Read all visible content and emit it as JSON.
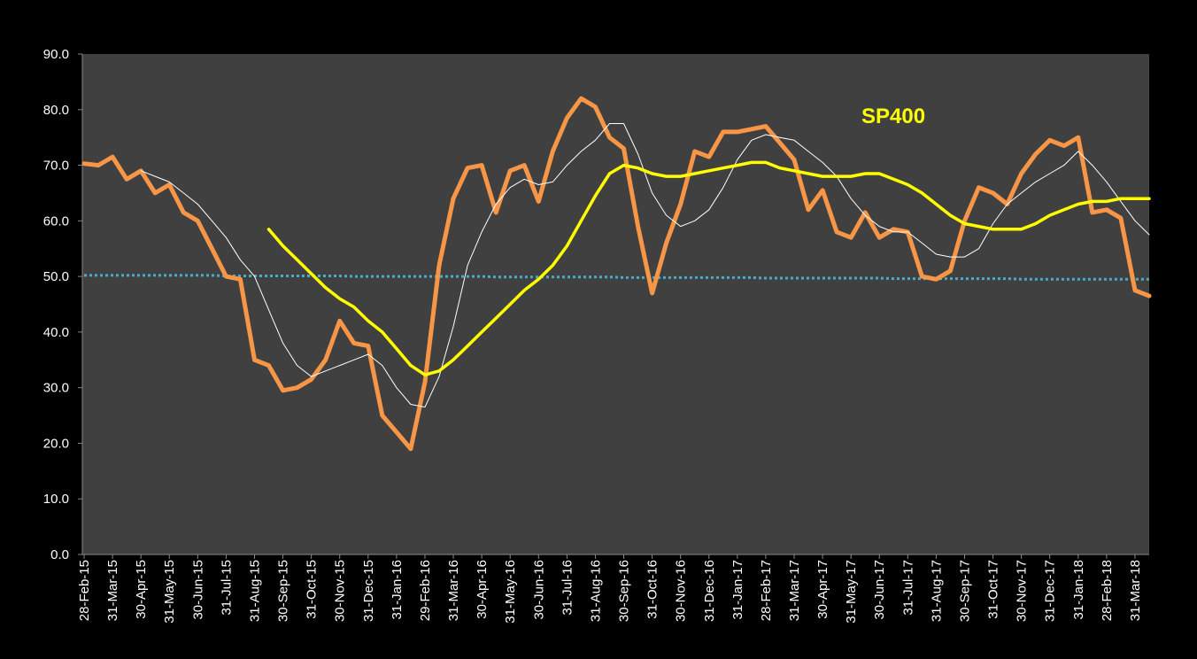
{
  "chart_data": {
    "type": "line",
    "annotations": [
      {
        "text": "SP400",
        "color": "#ffff00"
      }
    ],
    "categories": [
      "28-Feb-15",
      null,
      "31-Mar-15",
      null,
      "30-Apr-15",
      null,
      "31-May-15",
      null,
      "30-Jun-15",
      null,
      "31-Jul-15",
      null,
      "31-Aug-15",
      null,
      "30-Sep-15",
      null,
      "31-Oct-15",
      null,
      "30-Nov-15",
      null,
      "31-Dec-15",
      null,
      "31-Jan-16",
      null,
      "29-Feb-16",
      null,
      "31-Mar-16",
      null,
      "30-Apr-16",
      null,
      "31-May-16",
      null,
      "30-Jun-16",
      null,
      "31-Jul-16",
      null,
      "31-Aug-16",
      null,
      "30-Sep-16",
      null,
      "31-Oct-16",
      null,
      "30-Nov-16",
      null,
      "31-Dec-16",
      null,
      "31-Jan-17",
      null,
      "28-Feb-17",
      null,
      "31-Mar-17",
      null,
      "30-Apr-17",
      null,
      "31-May-17",
      null,
      "30-Jun-17",
      null,
      "31-Jul-17",
      null,
      "31-Aug-17",
      null,
      "30-Sep-17",
      null,
      "31-Oct-17",
      null,
      "30-Nov-17",
      null,
      "31-Dec-17",
      null,
      "31-Jan-18",
      null,
      "28-Feb-18",
      null,
      "31-Mar-18",
      null
    ],
    "series": [
      {
        "color": "#4bacc6",
        "width": 3,
        "dash": true,
        "values": [
          50.2,
          50.2,
          50.2,
          50.2,
          50.2,
          50.2,
          50.2,
          50.2,
          50.2,
          50.2,
          50.1,
          50.1,
          50.1,
          50.1,
          50.1,
          50.1,
          50.1,
          50.1,
          50.1,
          50.0,
          50.0,
          50.0,
          50.0,
          50.0,
          50.0,
          50.0,
          50.0,
          50.0,
          50.0,
          49.9,
          49.9,
          49.9,
          49.9,
          49.9,
          49.9,
          49.9,
          49.9,
          49.9,
          49.8,
          49.8,
          49.8,
          49.8,
          49.8,
          49.8,
          49.8,
          49.8,
          49.8,
          49.8,
          49.7,
          49.7,
          49.7,
          49.7,
          49.7,
          49.7,
          49.7,
          49.7,
          49.7,
          49.6,
          49.6,
          49.6,
          49.6,
          49.6,
          49.6,
          49.6,
          49.6,
          49.6,
          49.5,
          49.5,
          49.5,
          49.5,
          49.5,
          49.5,
          49.5,
          49.5,
          49.5,
          49.5
        ]
      },
      {
        "color": "#f79646",
        "width": 5,
        "values": [
          70.3,
          70,
          71.5,
          67.5,
          69,
          65,
          66.5,
          61.5,
          60,
          55,
          50,
          49.5,
          35,
          34,
          29.5,
          30,
          31.5,
          35,
          42,
          38,
          37.5,
          25,
          22,
          19,
          31,
          52,
          64,
          69.5,
          70,
          61.5,
          69,
          70,
          63.5,
          72.5,
          78.5,
          82,
          80.5,
          75,
          73,
          59,
          47,
          56,
          63,
          72.5,
          71.5,
          76,
          76,
          76.5,
          77,
          74,
          71,
          62,
          65.5,
          58,
          57,
          61.5,
          57,
          58.5,
          58,
          50,
          49.5,
          51,
          60,
          66,
          65,
          63,
          68.5,
          72,
          74.5,
          73.5,
          75,
          61.5,
          62,
          60.5,
          47.5,
          46.5
        ]
      },
      {
        "color": "#ffffff",
        "width": 1,
        "values": [
          null,
          null,
          null,
          null,
          69,
          68,
          67,
          65,
          63,
          60,
          57,
          53,
          50,
          44,
          38,
          34,
          32,
          33,
          34,
          35,
          36,
          34,
          30,
          27,
          26.5,
          32,
          41,
          52,
          58,
          63,
          66,
          67.5,
          66.5,
          67,
          70,
          72.5,
          74.5,
          77.5,
          77.5,
          72,
          65,
          61,
          59,
          60,
          62,
          66,
          71,
          74.5,
          75.5,
          75,
          74.5,
          72.5,
          70.5,
          68,
          64,
          61,
          59,
          58,
          58,
          56,
          54,
          53.5,
          53.5,
          55,
          59.5,
          63,
          65,
          67,
          68.5,
          70,
          72.5,
          70,
          67,
          63.5,
          60,
          57.5
        ]
      },
      {
        "color": "#ffff00",
        "width": 3.5,
        "values": [
          null,
          null,
          null,
          null,
          null,
          null,
          null,
          null,
          null,
          null,
          null,
          null,
          null,
          58.5,
          55.5,
          53,
          50.5,
          48,
          46,
          44.5,
          42,
          40,
          37,
          34,
          32.3,
          33,
          35,
          37.5,
          40,
          42.5,
          45,
          47.5,
          49.5,
          52,
          55.5,
          60,
          64.5,
          68.5,
          70,
          69.5,
          68.5,
          68,
          68,
          68.5,
          69,
          69.5,
          70,
          70.5,
          70.5,
          69.5,
          69,
          68.5,
          68,
          68,
          68,
          68.5,
          68.5,
          67.5,
          66.5,
          65,
          63,
          61,
          59.5,
          59,
          58.5,
          58.5,
          58.5,
          59.5,
          61,
          62,
          63,
          63.5,
          63.5,
          64,
          64,
          64
        ]
      }
    ],
    "ylim": [
      0,
      90
    ],
    "yticks": [
      {
        "value": 0,
        "label": "0.0"
      },
      {
        "value": 10,
        "label": "10.0"
      },
      {
        "value": 20,
        "label": "20.0"
      },
      {
        "value": 30,
        "label": "30.0"
      },
      {
        "value": 40,
        "label": "40.0"
      },
      {
        "value": 50,
        "label": "50.0"
      },
      {
        "value": 60,
        "label": "60.0"
      },
      {
        "value": 70,
        "label": "70.0"
      },
      {
        "value": 80,
        "label": "80.0"
      },
      {
        "value": 90,
        "label": "90.0"
      }
    ]
  }
}
